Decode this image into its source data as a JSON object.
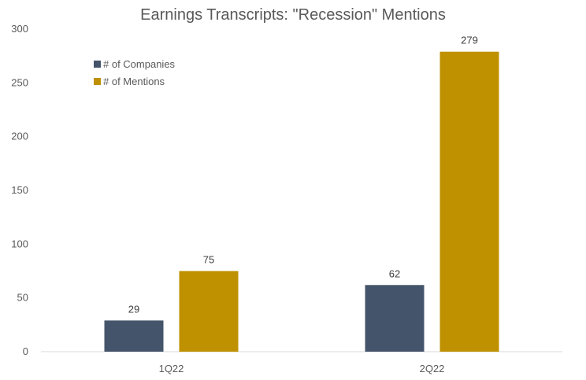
{
  "chart_data": {
    "type": "bar",
    "title": "Earnings Transcripts: \"Recession\" Mentions",
    "xlabel": "",
    "ylabel": "",
    "categories": [
      "1Q22",
      "2Q22"
    ],
    "series": [
      {
        "name": "# of Companies",
        "values": [
          29,
          62
        ],
        "color": "#44546a"
      },
      {
        "name": "# of Mentions",
        "values": [
          75,
          279
        ],
        "color": "#bf9000"
      }
    ],
    "ylim": [
      0,
      300
    ],
    "yticks": [
      0,
      50,
      100,
      150,
      200,
      250,
      300
    ],
    "data_labels": true,
    "grid": false,
    "legend_position": "top-left"
  }
}
